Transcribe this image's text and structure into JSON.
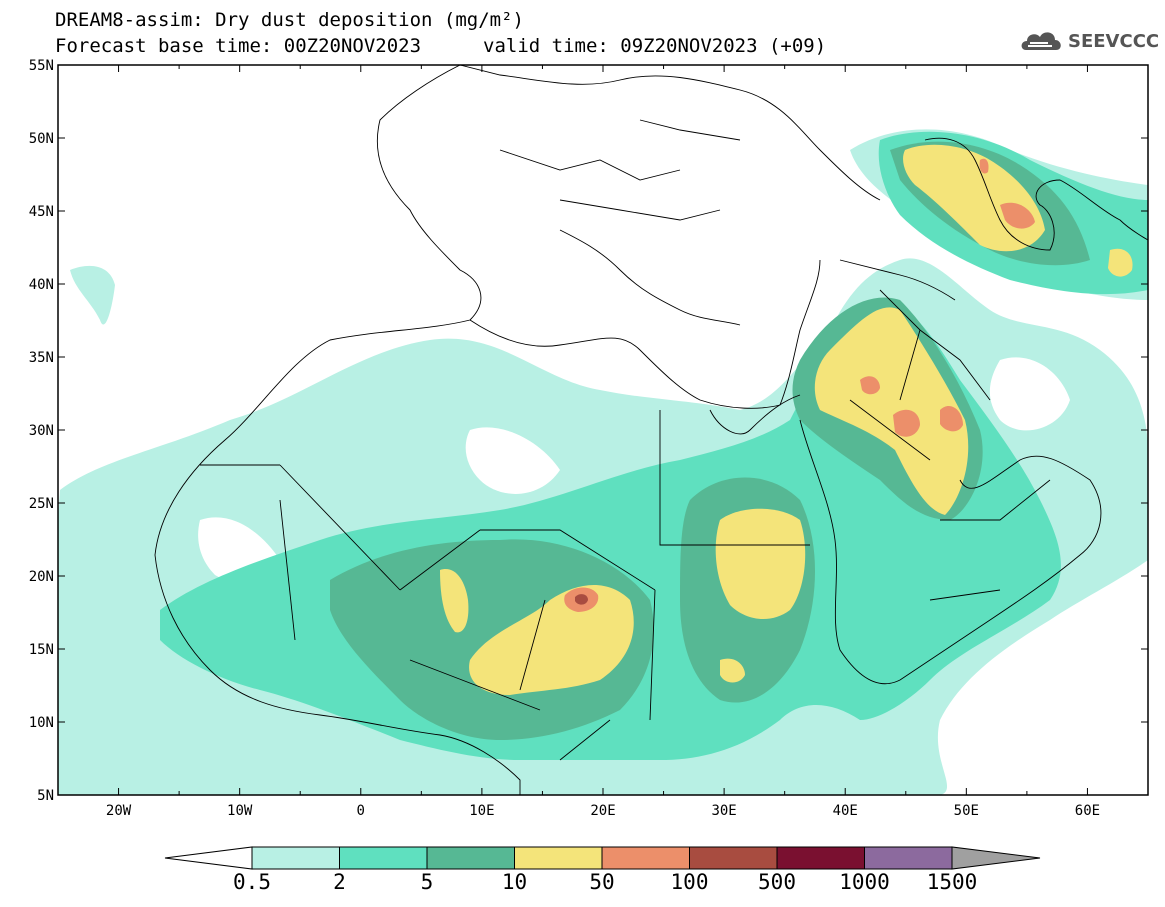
{
  "header": {
    "title_line1": "DREAM8-assim: Dry dust deposition (mg/m²)",
    "base_time": "Forecast base time: 00Z20NOV2023",
    "valid_time": "valid time: 09Z20NOV2023 (+09)",
    "logo_text": "SEEVCCC"
  },
  "map": {
    "lon_ticks": [
      "20W",
      "10W",
      "0",
      "10E",
      "20E",
      "30E",
      "40E",
      "50E",
      "60E"
    ],
    "lat_ticks": [
      "55N",
      "50N",
      "45N",
      "40N",
      "35N",
      "30N",
      "25N",
      "20N",
      "15N",
      "10N",
      "5N"
    ],
    "lon_range": [
      -25,
      65
    ],
    "lat_range": [
      5,
      55
    ]
  },
  "colorbar": {
    "labels": [
      "0.5",
      "2",
      "5",
      "10",
      "50",
      "100",
      "500",
      "1000",
      "1500"
    ],
    "colors": [
      "#b8f0e4",
      "#5fe0bf",
      "#56b894",
      "#f4e47a",
      "#ec8f6a",
      "#a84c40",
      "#7a1030",
      "#8c6a9e"
    ],
    "under_color": "#ffffff",
    "over_color": "#a0a0a0"
  },
  "colors": {
    "level_0_5": "#b8f0e4",
    "level_2": "#5fe0bf",
    "level_5": "#56b894",
    "level_10": "#f4e47a",
    "level_50": "#ec8f6a",
    "level_100": "#a84c40"
  }
}
